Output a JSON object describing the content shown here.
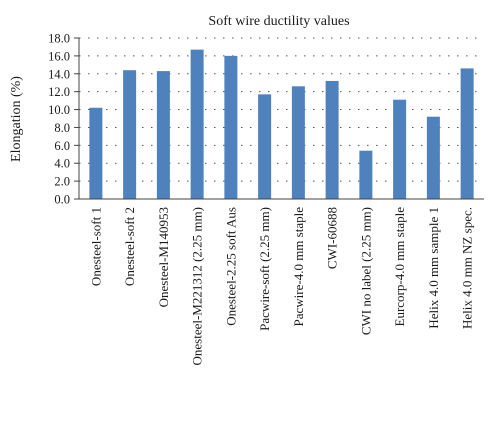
{
  "chart_data": {
    "type": "bar",
    "title": "Soft wire ductility values",
    "xlabel": "",
    "ylabel": "Elongation (%)",
    "ylim": [
      0,
      18
    ],
    "ytick_step": 2,
    "yticks": [
      "0.0",
      "2.0",
      "4.0",
      "6.0",
      "8.0",
      "10.0",
      "12.0",
      "14.0",
      "16.0",
      "18.0"
    ],
    "grid": "dotted-horizontal",
    "bar_color": "#4f81bd",
    "categories": [
      "Onesteel-soft 1",
      "Onesteel-soft 2",
      "Onesteel-M140953",
      "Onesteel-M221312 (2.25 mm)",
      "Onesteel-2.25 soft Aus",
      "Pacwire-soft (2.25 mm)",
      "Pacwire-4.0 mm staple",
      "CWI-60688",
      "CWI no label (2.25 mm)",
      "Eurcorp-4.0 mm staple",
      "Helix 4.0 mm sample 1",
      "Helix 4.0 mm NZ spec."
    ],
    "values": [
      10.2,
      14.4,
      14.3,
      16.7,
      16.0,
      11.7,
      12.6,
      13.2,
      5.4,
      11.1,
      9.2,
      14.6
    ]
  }
}
